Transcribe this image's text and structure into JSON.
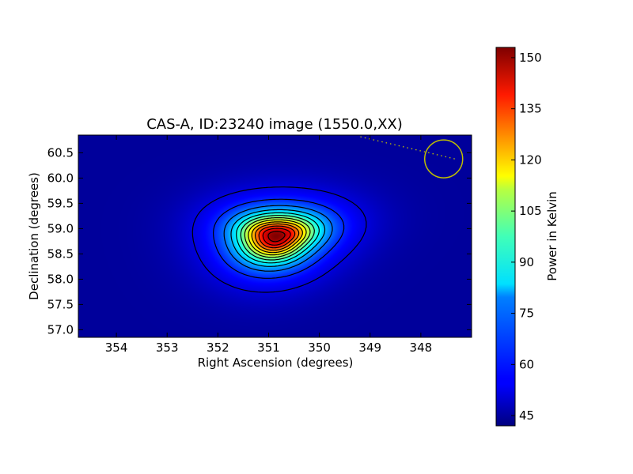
{
  "chart_data": {
    "type": "heatmap",
    "title": "CAS-A, ID:23240 image (1550.0,XX)",
    "xlabel": "Right Ascension (degrees)",
    "ylabel": "Declination (degrees)",
    "xlim": [
      354.75,
      347.0
    ],
    "ylim": [
      56.85,
      60.85
    ],
    "x_ticks": [
      354,
      353,
      352,
      351,
      350,
      349,
      348
    ],
    "y_ticks": [
      57.0,
      57.5,
      58.0,
      58.5,
      59.0,
      59.5,
      60.0,
      60.5
    ],
    "colormap": "jet",
    "colorbar": {
      "label": "Power in Kelvin",
      "min": 42,
      "max": 153,
      "ticks": [
        45,
        60,
        75,
        90,
        105,
        120,
        135,
        150
      ]
    },
    "peak": {
      "ra": 350.85,
      "dec": 58.85,
      "value": 153
    },
    "background_value": 45,
    "contour_levels": [
      52,
      60,
      68,
      76,
      84,
      92,
      100,
      108,
      116,
      124,
      132,
      140,
      148
    ],
    "beam_marker": {
      "ra": 347.55,
      "dec": 60.38,
      "color": "#bfbf00"
    }
  }
}
